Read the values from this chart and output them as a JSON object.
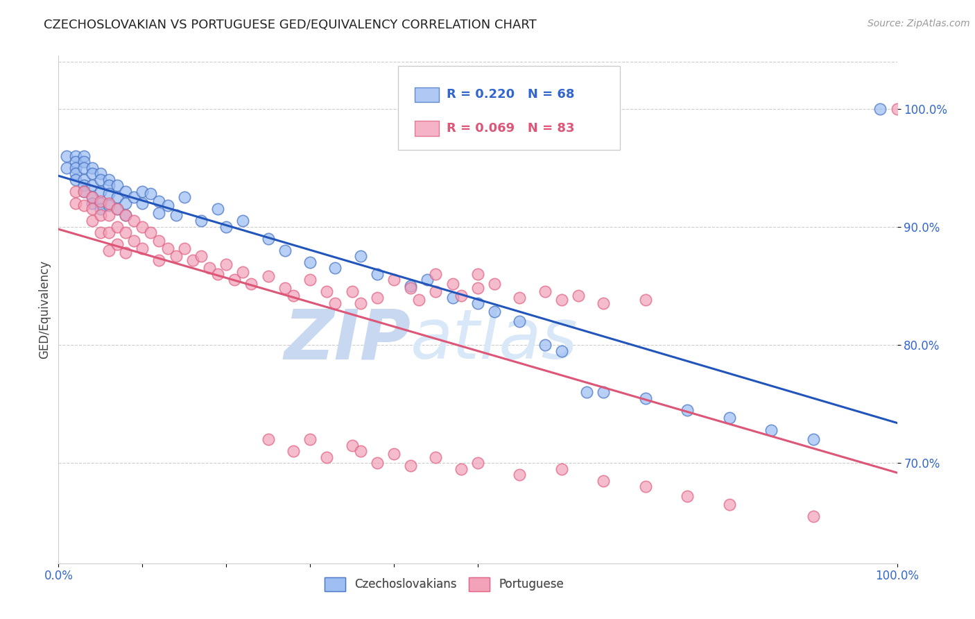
{
  "title": "CZECHOSLOVAKIAN VS PORTUGUESE GED/EQUIVALENCY CORRELATION CHART",
  "source": "Source: ZipAtlas.com",
  "ylabel": "GED/Equivalency",
  "xlim": [
    0.0,
    1.0
  ],
  "ylim": [
    0.615,
    1.045
  ],
  "x_ticks": [
    0.0,
    0.1,
    0.2,
    0.3,
    0.4,
    0.5,
    1.0
  ],
  "x_tick_labels": [
    "0.0%",
    "",
    "",
    "",
    "",
    "",
    "100.0%"
  ],
  "y_ticks": [
    0.7,
    0.8,
    0.9,
    1.0
  ],
  "y_tick_labels": [
    "70.0%",
    "80.0%",
    "90.0%",
    "100.0%"
  ],
  "legend_labels": [
    "Czechoslovakians",
    "Portuguese"
  ],
  "series1_r": "R = 0.220",
  "series1_n": "N = 68",
  "series2_r": "R = 0.069",
  "series2_n": "N = 83",
  "series1_color": "#9bbcf2",
  "series2_color": "#f2a0b8",
  "series1_edge": "#4472c4",
  "series2_edge": "#e06080",
  "line1_color": "#2255bb",
  "line2_color": "#dd5577",
  "background_color": "#ffffff",
  "watermark_zip": "ZIP",
  "watermark_atlas": "atlas",
  "title_fontsize": 13,
  "source_fontsize": 10,
  "tick_fontsize": 12,
  "legend_fontsize": 12,
  "blue_x": [
    0.01,
    0.01,
    0.02,
    0.02,
    0.02,
    0.02,
    0.02,
    0.03,
    0.03,
    0.03,
    0.03,
    0.03,
    0.03,
    0.04,
    0.04,
    0.04,
    0.04,
    0.04,
    0.05,
    0.05,
    0.05,
    0.05,
    0.05,
    0.06,
    0.06,
    0.06,
    0.06,
    0.07,
    0.07,
    0.07,
    0.08,
    0.08,
    0.08,
    0.09,
    0.1,
    0.1,
    0.11,
    0.12,
    0.12,
    0.13,
    0.14,
    0.15,
    0.17,
    0.19,
    0.2,
    0.22,
    0.25,
    0.27,
    0.3,
    0.33,
    0.36,
    0.38,
    0.42,
    0.44,
    0.47,
    0.5,
    0.52,
    0.55,
    0.58,
    0.6,
    0.63,
    0.65,
    0.7,
    0.75,
    0.8,
    0.85,
    0.9,
    0.98
  ],
  "blue_y": [
    0.96,
    0.95,
    0.96,
    0.955,
    0.95,
    0.945,
    0.94,
    0.96,
    0.955,
    0.95,
    0.94,
    0.935,
    0.93,
    0.95,
    0.945,
    0.935,
    0.925,
    0.92,
    0.945,
    0.94,
    0.93,
    0.92,
    0.915,
    0.94,
    0.935,
    0.928,
    0.918,
    0.935,
    0.925,
    0.915,
    0.93,
    0.92,
    0.91,
    0.925,
    0.93,
    0.92,
    0.928,
    0.922,
    0.912,
    0.918,
    0.91,
    0.925,
    0.905,
    0.915,
    0.9,
    0.905,
    0.89,
    0.88,
    0.87,
    0.865,
    0.875,
    0.86,
    0.85,
    0.855,
    0.84,
    0.835,
    0.828,
    0.82,
    0.8,
    0.795,
    0.76,
    0.76,
    0.755,
    0.745,
    0.738,
    0.728,
    0.72,
    1.0
  ],
  "pink_x": [
    0.02,
    0.02,
    0.03,
    0.03,
    0.04,
    0.04,
    0.04,
    0.05,
    0.05,
    0.05,
    0.06,
    0.06,
    0.06,
    0.06,
    0.07,
    0.07,
    0.07,
    0.08,
    0.08,
    0.08,
    0.09,
    0.09,
    0.1,
    0.1,
    0.11,
    0.12,
    0.12,
    0.13,
    0.14,
    0.15,
    0.16,
    0.17,
    0.18,
    0.19,
    0.2,
    0.21,
    0.22,
    0.23,
    0.25,
    0.27,
    0.28,
    0.3,
    0.32,
    0.33,
    0.35,
    0.36,
    0.38,
    0.4,
    0.42,
    0.43,
    0.45,
    0.45,
    0.47,
    0.48,
    0.5,
    0.5,
    0.52,
    0.55,
    0.58,
    0.6,
    0.62,
    0.65,
    0.7,
    0.25,
    0.28,
    0.3,
    0.32,
    0.35,
    0.36,
    0.38,
    0.4,
    0.42,
    0.45,
    0.48,
    0.5,
    0.55,
    0.6,
    0.65,
    0.7,
    0.75,
    0.8,
    0.9,
    1.0
  ],
  "pink_y": [
    0.93,
    0.92,
    0.93,
    0.918,
    0.925,
    0.915,
    0.905,
    0.922,
    0.91,
    0.895,
    0.92,
    0.91,
    0.895,
    0.88,
    0.915,
    0.9,
    0.885,
    0.91,
    0.895,
    0.878,
    0.905,
    0.888,
    0.9,
    0.882,
    0.895,
    0.888,
    0.872,
    0.882,
    0.875,
    0.882,
    0.872,
    0.875,
    0.865,
    0.86,
    0.868,
    0.855,
    0.862,
    0.852,
    0.858,
    0.848,
    0.842,
    0.855,
    0.845,
    0.835,
    0.845,
    0.835,
    0.84,
    0.855,
    0.848,
    0.838,
    0.86,
    0.845,
    0.852,
    0.842,
    0.86,
    0.848,
    0.852,
    0.84,
    0.845,
    0.838,
    0.842,
    0.835,
    0.838,
    0.72,
    0.71,
    0.72,
    0.705,
    0.715,
    0.71,
    0.7,
    0.708,
    0.698,
    0.705,
    0.695,
    0.7,
    0.69,
    0.695,
    0.685,
    0.68,
    0.672,
    0.665,
    0.655,
    1.0
  ]
}
